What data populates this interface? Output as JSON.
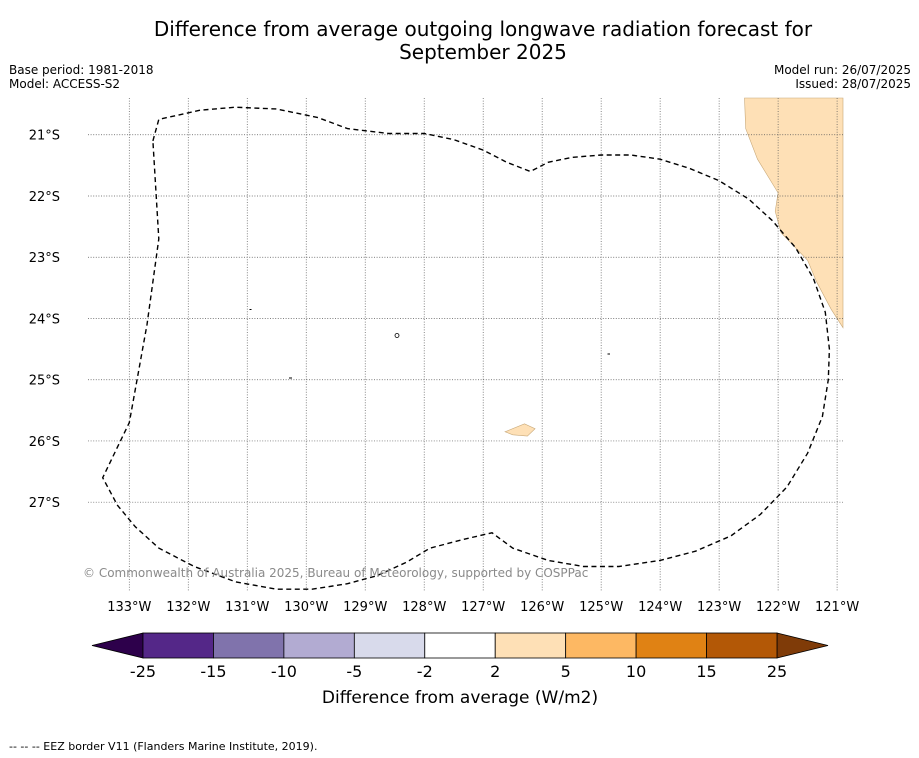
{
  "title": [
    "Difference from average outgoing longwave radiation forecast for",
    "September 2025"
  ],
  "meta_left": [
    "Base period: 1981-2018",
    "Model: ACCESS-S2"
  ],
  "meta_right": [
    "Model run: 26/07/2025",
    "Issued: 28/07/2025"
  ],
  "map": {
    "lon_range": [
      -133.7,
      -120.9
    ],
    "lat_range": [
      -20.4,
      -28.45
    ],
    "lon_ticks": [
      -133,
      -132,
      -131,
      -130,
      -129,
      -128,
      -127,
      -126,
      -125,
      -124,
      -123,
      -122,
      -121
    ],
    "lon_labels": [
      "133°W",
      "132°W",
      "131°W",
      "130°W",
      "129°W",
      "128°W",
      "127°W",
      "126°W",
      "125°W",
      "124°W",
      "123°W",
      "122°W",
      "121°W"
    ],
    "lat_ticks": [
      -21,
      -22,
      -23,
      -24,
      -25,
      -26,
      -27
    ],
    "lat_labels": [
      "21°S",
      "22°S",
      "23°S",
      "24°S",
      "25°S",
      "26°S",
      "27°S"
    ],
    "grid": "dotted",
    "copyright": "© Commonwealth of Australia 2025, Bureau of Meteorology, supported by COSPPac",
    "eez_border": [
      [
        -132.6,
        -21.1
      ],
      [
        -132.5,
        -20.75
      ],
      [
        -131.8,
        -20.6
      ],
      [
        -131.2,
        -20.55
      ],
      [
        -130.5,
        -20.58
      ],
      [
        -129.8,
        -20.72
      ],
      [
        -129.3,
        -20.9
      ],
      [
        -128.6,
        -20.98
      ],
      [
        -128.0,
        -20.98
      ],
      [
        -127.5,
        -21.08
      ],
      [
        -127.0,
        -21.25
      ],
      [
        -126.6,
        -21.45
      ],
      [
        -126.2,
        -21.6
      ],
      [
        -125.9,
        -21.45
      ],
      [
        -125.5,
        -21.37
      ],
      [
        -125.0,
        -21.33
      ],
      [
        -124.5,
        -21.33
      ],
      [
        -124.0,
        -21.4
      ],
      [
        -123.5,
        -21.55
      ],
      [
        -123.0,
        -21.75
      ],
      [
        -122.5,
        -22.05
      ],
      [
        -122.1,
        -22.4
      ],
      [
        -121.7,
        -22.85
      ],
      [
        -121.4,
        -23.35
      ],
      [
        -121.2,
        -23.9
      ],
      [
        -121.13,
        -24.5
      ],
      [
        -121.15,
        -25.0
      ],
      [
        -121.25,
        -25.6
      ],
      [
        -121.5,
        -26.2
      ],
      [
        -121.85,
        -26.75
      ],
      [
        -122.3,
        -27.2
      ],
      [
        -122.8,
        -27.55
      ],
      [
        -123.4,
        -27.8
      ],
      [
        -124.0,
        -27.95
      ],
      [
        -124.7,
        -28.05
      ],
      [
        -125.3,
        -28.05
      ],
      [
        -125.9,
        -27.95
      ],
      [
        -126.5,
        -27.75
      ],
      [
        -126.85,
        -27.5
      ],
      [
        -127.3,
        -27.6
      ],
      [
        -127.9,
        -27.75
      ],
      [
        -128.3,
        -27.98
      ],
      [
        -128.8,
        -28.2
      ],
      [
        -129.3,
        -28.33
      ],
      [
        -129.9,
        -28.42
      ],
      [
        -130.5,
        -28.42
      ],
      [
        -131.2,
        -28.3
      ],
      [
        -131.9,
        -28.05
      ],
      [
        -132.5,
        -27.75
      ],
      [
        -132.9,
        -27.4
      ],
      [
        -133.2,
        -27.05
      ],
      [
        -133.45,
        -26.6
      ],
      [
        -133.0,
        -25.7
      ],
      [
        -132.7,
        -24.1
      ],
      [
        -132.5,
        -22.7
      ],
      [
        -132.6,
        -21.1
      ]
    ],
    "anomaly_patches": [
      {
        "range": "2 to 5",
        "color": "#fee0b6",
        "points": [
          [
            -121.55,
            -20.4
          ],
          [
            -120.9,
            -20.4
          ],
          [
            -120.9,
            -24.15
          ],
          [
            -121.1,
            -23.85
          ],
          [
            -121.35,
            -23.4
          ],
          [
            -121.5,
            -23.05
          ],
          [
            -121.95,
            -22.6
          ],
          [
            -122.05,
            -22.25
          ],
          [
            -122.0,
            -21.95
          ],
          [
            -122.35,
            -21.4
          ],
          [
            -122.55,
            -20.9
          ],
          [
            -122.57,
            -20.4
          ]
        ]
      },
      {
        "range": "2 to 5",
        "color": "#fee0b6",
        "points": [
          [
            -126.63,
            -25.85
          ],
          [
            -126.3,
            -25.72
          ],
          [
            -126.12,
            -25.8
          ],
          [
            -126.25,
            -25.92
          ],
          [
            -126.5,
            -25.9
          ]
        ]
      }
    ]
  },
  "colorbar": {
    "title": "Difference from average (W/m2)",
    "bounds": [
      "-25",
      "-15",
      "-10",
      "-5",
      "-2",
      "2",
      "5",
      "10",
      "15",
      "25"
    ],
    "colors": [
      "#542788",
      "#8073ac",
      "#b2abd2",
      "#d8daeb",
      "#ffffff",
      "#fee0b6",
      "#fdb863",
      "#e08214",
      "#b35806"
    ],
    "under_color": "#2d004b",
    "over_color": "#7f3b08"
  },
  "footer": "-- -- -- EEZ border V11 (Flanders Marine Institute, 2019)."
}
